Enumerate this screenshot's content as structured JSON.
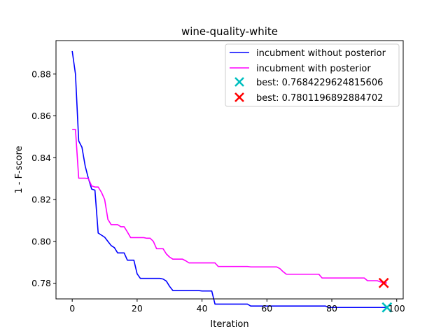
{
  "chart_data": {
    "type": "line",
    "title": "wine-quality-white",
    "xlabel": "Iteration",
    "ylabel": "1 - F-score",
    "xlim": [
      -5,
      102
    ],
    "ylim": [
      0.7725,
      0.896
    ],
    "xticks": [
      0,
      20,
      40,
      60,
      80,
      100
    ],
    "yticks": [
      0.78,
      0.8,
      0.82,
      0.84,
      0.86,
      0.88
    ],
    "ytick_labels": [
      "0.78",
      "0.80",
      "0.82",
      "0.84",
      "0.86",
      "0.88"
    ],
    "grid": false,
    "legend_position": "top-right",
    "series": [
      {
        "name": "incubment without posterior",
        "color": "#0000ff",
        "x": [
          0,
          1,
          2,
          3,
          4,
          5,
          6,
          7,
          8,
          9,
          10,
          11,
          12,
          13,
          14,
          15,
          16,
          17,
          18,
          19,
          20,
          21,
          22,
          23,
          24,
          25,
          26,
          27,
          28,
          29,
          30,
          31,
          32,
          33,
          34,
          35,
          36,
          37,
          38,
          39,
          40,
          41,
          42,
          43,
          44,
          45,
          46,
          47,
          48,
          49,
          50,
          51,
          52,
          53,
          54,
          55,
          56,
          57,
          58,
          59,
          60,
          61,
          62,
          63,
          64,
          65,
          66,
          67,
          68,
          69,
          70,
          71,
          72,
          73,
          74,
          75,
          76,
          77,
          78,
          79,
          80,
          81,
          82,
          83,
          84,
          85,
          86,
          87,
          88,
          89,
          90,
          91,
          92,
          93,
          94,
          95,
          96,
          97
        ],
        "y": [
          0.891,
          0.88,
          0.848,
          0.845,
          0.836,
          0.83,
          0.825,
          0.8245,
          0.804,
          0.803,
          0.802,
          0.8,
          0.798,
          0.797,
          0.7945,
          0.7945,
          0.7945,
          0.791,
          0.791,
          0.791,
          0.7845,
          0.7823,
          0.7823,
          0.7823,
          0.7823,
          0.7823,
          0.7823,
          0.7823,
          0.782,
          0.781,
          0.7785,
          0.7765,
          0.7765,
          0.7765,
          0.7765,
          0.7765,
          0.7765,
          0.7765,
          0.7765,
          0.7765,
          0.7763,
          0.7763,
          0.7763,
          0.7763,
          0.77,
          0.77,
          0.77,
          0.77,
          0.77,
          0.77,
          0.77,
          0.77,
          0.77,
          0.77,
          0.77,
          0.7691,
          0.7691,
          0.7691,
          0.7691,
          0.7691,
          0.7691,
          0.7691,
          0.7691,
          0.7691,
          0.7691,
          0.7691,
          0.7691,
          0.7691,
          0.7691,
          0.7691,
          0.7691,
          0.7691,
          0.7691,
          0.7691,
          0.7691,
          0.7691,
          0.7691,
          0.7691,
          0.7691,
          0.7684,
          0.7684,
          0.7684,
          0.7684,
          0.7684,
          0.7684,
          0.7684,
          0.7684,
          0.7684,
          0.7684,
          0.7684,
          0.7684,
          0.7684,
          0.7684,
          0.7684,
          0.7684,
          0.7684,
          0.7684,
          0.7684
        ]
      },
      {
        "name": "incubment with posterior",
        "color": "#ff00ff",
        "x": [
          0,
          1,
          2,
          3,
          4,
          5,
          6,
          7,
          8,
          9,
          10,
          11,
          12,
          13,
          14,
          15,
          16,
          17,
          18,
          19,
          20,
          21,
          22,
          23,
          24,
          25,
          26,
          27,
          28,
          29,
          30,
          31,
          32,
          33,
          34,
          35,
          36,
          37,
          38,
          39,
          40,
          41,
          42,
          43,
          44,
          45,
          46,
          47,
          48,
          49,
          50,
          51,
          52,
          53,
          54,
          55,
          56,
          57,
          58,
          59,
          60,
          61,
          62,
          63,
          64,
          65,
          66,
          67,
          68,
          69,
          70,
          71,
          72,
          73,
          74,
          75,
          76,
          77,
          78,
          79,
          80,
          81,
          82,
          83,
          84,
          85,
          86,
          87,
          88,
          89,
          90,
          91,
          92,
          93,
          94,
          95,
          96,
          97
        ],
        "y": [
          0.8535,
          0.8535,
          0.8302,
          0.8302,
          0.8302,
          0.83,
          0.8265,
          0.826,
          0.826,
          0.8235,
          0.82,
          0.8105,
          0.808,
          0.808,
          0.808,
          0.807,
          0.807,
          0.8045,
          0.8018,
          0.8018,
          0.8018,
          0.8018,
          0.8018,
          0.8015,
          0.8015,
          0.8,
          0.7965,
          0.7965,
          0.7965,
          0.794,
          0.7925,
          0.7915,
          0.7915,
          0.7915,
          0.7915,
          0.7907,
          0.7897,
          0.7897,
          0.7897,
          0.7897,
          0.7897,
          0.7897,
          0.7897,
          0.7897,
          0.7897,
          0.788,
          0.788,
          0.788,
          0.788,
          0.788,
          0.788,
          0.788,
          0.788,
          0.788,
          0.788,
          0.7878,
          0.7878,
          0.7878,
          0.7878,
          0.7878,
          0.7878,
          0.7878,
          0.7878,
          0.7878,
          0.787,
          0.7855,
          0.7843,
          0.7843,
          0.7843,
          0.7843,
          0.7843,
          0.7843,
          0.7843,
          0.7843,
          0.7843,
          0.7843,
          0.7843,
          0.7825,
          0.7825,
          0.7825,
          0.7825,
          0.7825,
          0.7825,
          0.7825,
          0.7825,
          0.7825,
          0.7825,
          0.7825,
          0.7825,
          0.7825,
          0.7825,
          0.7812,
          0.7812,
          0.7812,
          0.7812,
          0.7806,
          0.7804,
          0.7801
        ]
      }
    ],
    "markers": [
      {
        "label": "best: 0.7684229624815606",
        "x": 97,
        "y": 0.7684229624815606,
        "color": "#00bfbf",
        "symbol": "x"
      },
      {
        "label": "best: 0.7801196892884702",
        "x": 96,
        "y": 0.7801196892884702,
        "color": "#ff0000",
        "symbol": "x"
      }
    ]
  }
}
